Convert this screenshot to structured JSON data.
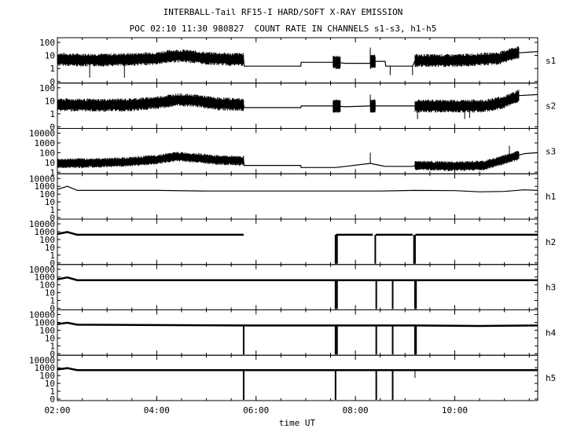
{
  "title": "INTERBALL-Tail RF15-I HARD/SOFT X-RAY EMISSION",
  "subtitle": "POC 02:10 11:30 980827  COUNT RATE IN CHANNELS s1-s3, h1-h5",
  "chart_data": {
    "type": "line",
    "title": "INTERBALL-Tail RF15-I HARD/SOFT X-RAY EMISSION",
    "subtitle": "POC 02:10 11:30 980827  COUNT RATE IN CHANNELS s1-s3, h1-h5",
    "xlabel": "time UT",
    "x_range_hours": [
      2.0,
      11.67
    ],
    "x_ticks": [
      "02:00",
      "04:00",
      "06:00",
      "08:00",
      "10:00"
    ],
    "x_tick_hours": [
      2,
      4,
      6,
      8,
      10
    ],
    "y_scale": "log",
    "grid": false,
    "panels": [
      {
        "name": "s1",
        "y_ticks": [
          "0",
          "1",
          "10",
          "100"
        ],
        "points": [
          [
            2.0,
            5
          ],
          [
            2.5,
            4.5
          ],
          [
            3.0,
            4.5
          ],
          [
            3.5,
            5
          ],
          [
            4.0,
            6
          ],
          [
            4.3,
            9
          ],
          [
            4.6,
            9
          ],
          [
            5.0,
            6
          ],
          [
            5.5,
            5
          ],
          [
            5.75,
            5
          ],
          [
            5.76,
            1.5
          ],
          [
            6.9,
            1.5
          ],
          [
            6.91,
            3
          ],
          [
            7.6,
            3
          ],
          [
            7.8,
            2.5
          ],
          [
            8.3,
            2.5
          ],
          [
            8.31,
            3.5
          ],
          [
            8.6,
            3.5
          ],
          [
            8.61,
            1.5
          ],
          [
            9.15,
            1.5
          ],
          [
            9.2,
            4
          ],
          [
            9.7,
            4
          ],
          [
            10.0,
            4
          ],
          [
            10.5,
            5
          ],
          [
            10.9,
            6
          ],
          [
            11.2,
            15
          ],
          [
            11.67,
            20
          ]
        ],
        "noisy": [
          [
            2.0,
            5.75
          ],
          [
            7.55,
            7.7
          ],
          [
            8.3,
            8.4
          ],
          [
            9.2,
            11.3
          ]
        ],
        "spikes": [
          [
            2.65,
            0.15
          ],
          [
            3.35,
            0.15
          ],
          [
            8.3,
            40
          ],
          [
            8.7,
            0.3
          ],
          [
            9.15,
            0.3
          ]
        ]
      },
      {
        "name": "s2",
        "y_ticks": [
          "0",
          "1",
          "10",
          "100"
        ],
        "points": [
          [
            2.0,
            5
          ],
          [
            2.8,
            4.5
          ],
          [
            3.5,
            5
          ],
          [
            4.0,
            7
          ],
          [
            4.4,
            12
          ],
          [
            4.8,
            10
          ],
          [
            5.2,
            6
          ],
          [
            5.75,
            5
          ],
          [
            5.76,
            3
          ],
          [
            6.9,
            3
          ],
          [
            6.91,
            4
          ],
          [
            7.6,
            4
          ],
          [
            7.8,
            3.5
          ],
          [
            8.3,
            4
          ],
          [
            8.6,
            4
          ],
          [
            8.61,
            4
          ],
          [
            9.15,
            4
          ],
          [
            9.2,
            4
          ],
          [
            10.0,
            4
          ],
          [
            10.6,
            4
          ],
          [
            11.0,
            8
          ],
          [
            11.3,
            25
          ],
          [
            11.67,
            30
          ]
        ],
        "noisy": [
          [
            2.0,
            5.75
          ],
          [
            7.55,
            7.7
          ],
          [
            8.3,
            8.4
          ],
          [
            9.2,
            11.3
          ]
        ],
        "spikes": [
          [
            8.3,
            30
          ],
          [
            9.25,
            0.4
          ],
          [
            10.2,
            0.4
          ],
          [
            10.3,
            0.5
          ]
        ]
      },
      {
        "name": "s3",
        "y_ticks": [
          "1",
          "10",
          "100",
          "1000",
          "10000"
        ],
        "points": [
          [
            2.0,
            8
          ],
          [
            2.8,
            9
          ],
          [
            3.5,
            12
          ],
          [
            4.0,
            20
          ],
          [
            4.4,
            40
          ],
          [
            4.8,
            30
          ],
          [
            5.2,
            18
          ],
          [
            5.75,
            15
          ],
          [
            5.76,
            5
          ],
          [
            6.9,
            5
          ],
          [
            6.91,
            3
          ],
          [
            7.6,
            3
          ],
          [
            7.8,
            4
          ],
          [
            8.3,
            8
          ],
          [
            8.5,
            5
          ],
          [
            8.6,
            4
          ],
          [
            8.61,
            4
          ],
          [
            9.15,
            4
          ],
          [
            9.2,
            5
          ],
          [
            10.0,
            4
          ],
          [
            10.6,
            5
          ],
          [
            11.0,
            20
          ],
          [
            11.4,
            80
          ],
          [
            11.67,
            100
          ]
        ],
        "noisy": [
          [
            2.0,
            5.75
          ],
          [
            9.2,
            11.3
          ]
        ],
        "spikes": [
          [
            8.3,
            100
          ],
          [
            11.1,
            500
          ]
        ]
      },
      {
        "name": "h1",
        "y_ticks": [
          "0",
          "1",
          "10",
          "100",
          "1000",
          "10000"
        ],
        "points": [
          [
            2.0,
            400
          ],
          [
            2.2,
            1000
          ],
          [
            2.4,
            300
          ],
          [
            3.0,
            300
          ],
          [
            4.0,
            300
          ],
          [
            5.0,
            250
          ],
          [
            5.75,
            250
          ],
          [
            6.5,
            250
          ],
          [
            7.5,
            250
          ],
          [
            8.5,
            250
          ],
          [
            9.2,
            300
          ],
          [
            10.0,
            280
          ],
          [
            10.5,
            200
          ],
          [
            11.0,
            220
          ],
          [
            11.4,
            350
          ],
          [
            11.67,
            300
          ]
        ],
        "noisy": [],
        "spikes": []
      },
      {
        "name": "h2",
        "y_ticks": [
          "0",
          "1",
          "10",
          "100",
          "1000",
          "10000"
        ],
        "points": [
          [
            2.0,
            500
          ],
          [
            2.2,
            900
          ],
          [
            2.4,
            400
          ],
          [
            5.75,
            400
          ],
          [
            5.76,
            null
          ],
          [
            7.6,
            null
          ],
          [
            7.61,
            400
          ],
          [
            8.35,
            400
          ],
          [
            8.36,
            null
          ],
          [
            8.4,
            null
          ],
          [
            8.41,
            400
          ],
          [
            9.15,
            400
          ],
          [
            9.16,
            null
          ],
          [
            9.2,
            null
          ],
          [
            9.21,
            400
          ],
          [
            11.67,
            400
          ]
        ],
        "drops": [
          7.6,
          7.63,
          8.4,
          9.18,
          9.2
        ],
        "noisy": [],
        "spikes": []
      },
      {
        "name": "h3",
        "y_ticks": [
          "0",
          "1",
          "10",
          "100",
          "1000",
          "10000"
        ],
        "points": [
          [
            2.0,
            500
          ],
          [
            2.2,
            900
          ],
          [
            2.4,
            400
          ],
          [
            5.75,
            400
          ],
          [
            7.6,
            400
          ],
          [
            8.35,
            400
          ],
          [
            8.8,
            400
          ],
          [
            9.15,
            400
          ],
          [
            9.2,
            400
          ],
          [
            11.67,
            400
          ]
        ],
        "drops": [
          7.6,
          7.63,
          8.42,
          8.75,
          9.2,
          9.22
        ],
        "noisy": [],
        "spikes": []
      },
      {
        "name": "h4",
        "y_ticks": [
          "0",
          "1",
          "10",
          "100",
          "1000",
          "10000"
        ],
        "points": [
          [
            2.0,
            600
          ],
          [
            2.2,
            900
          ],
          [
            2.4,
            500
          ],
          [
            5.75,
            400
          ],
          [
            7.6,
            400
          ],
          [
            8.35,
            400
          ],
          [
            8.8,
            400
          ],
          [
            9.15,
            400
          ],
          [
            9.2,
            400
          ],
          [
            10.5,
            350
          ],
          [
            11.67,
            400
          ]
        ],
        "drops": [
          5.75,
          7.6,
          7.63,
          8.42,
          8.75,
          9.2,
          9.22
        ],
        "noisy": [],
        "spikes": []
      },
      {
        "name": "h5",
        "y_ticks": [
          "0",
          "1",
          "10",
          "100",
          "1000",
          "10000"
        ],
        "points": [
          [
            2.0,
            600
          ],
          [
            2.2,
            900
          ],
          [
            2.4,
            500
          ],
          [
            5.75,
            500
          ],
          [
            7.6,
            500
          ],
          [
            8.35,
            500
          ],
          [
            8.8,
            500
          ],
          [
            9.15,
            500
          ],
          [
            9.2,
            500
          ],
          [
            11.67,
            500
          ]
        ],
        "drops": [
          5.75,
          7.6,
          8.42,
          8.75
        ],
        "noisy": [],
        "spikes": [
          [
            9.2,
            50
          ]
        ]
      }
    ]
  }
}
